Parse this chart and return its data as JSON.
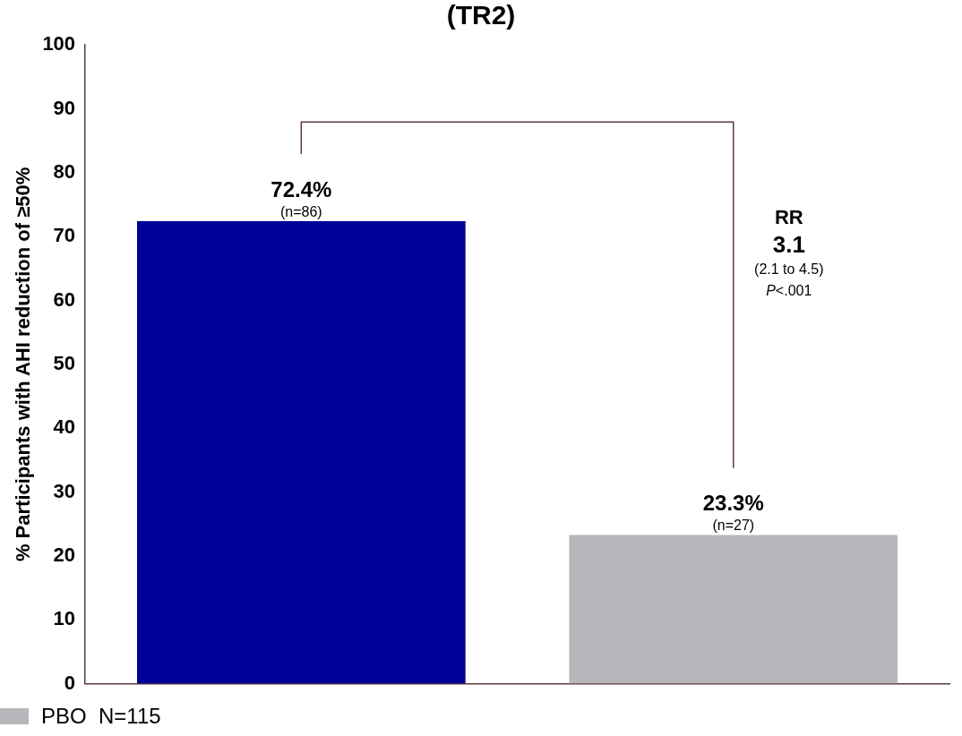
{
  "chart_data": {
    "type": "bar",
    "title": "(TR2)",
    "ylabel": "% Participants with AHI reduction of ≥50%",
    "categories": [
      null,
      null
    ],
    "series": [
      {
        "color": "#000099",
        "values": [
          72.4,
          null
        ],
        "value_labels": [
          "72.4%",
          null
        ]
      },
      {
        "name": "PBO  N=115",
        "color": "#b7b7bb",
        "values": [
          null,
          23.3
        ],
        "value_labels": [
          null,
          "23.3%"
        ]
      }
    ],
    "ylim": [
      0,
      100
    ],
    "yticks": [
      0,
      10,
      20,
      30,
      40,
      50,
      60,
      70,
      80,
      90,
      100
    ],
    "grid": false,
    "legend": "bottom left",
    "annotations": [
      "(n=86)",
      "(n=27)",
      "RR",
      "3.1",
      "(2.1 to 4.5)",
      "P<.001"
    ]
  }
}
